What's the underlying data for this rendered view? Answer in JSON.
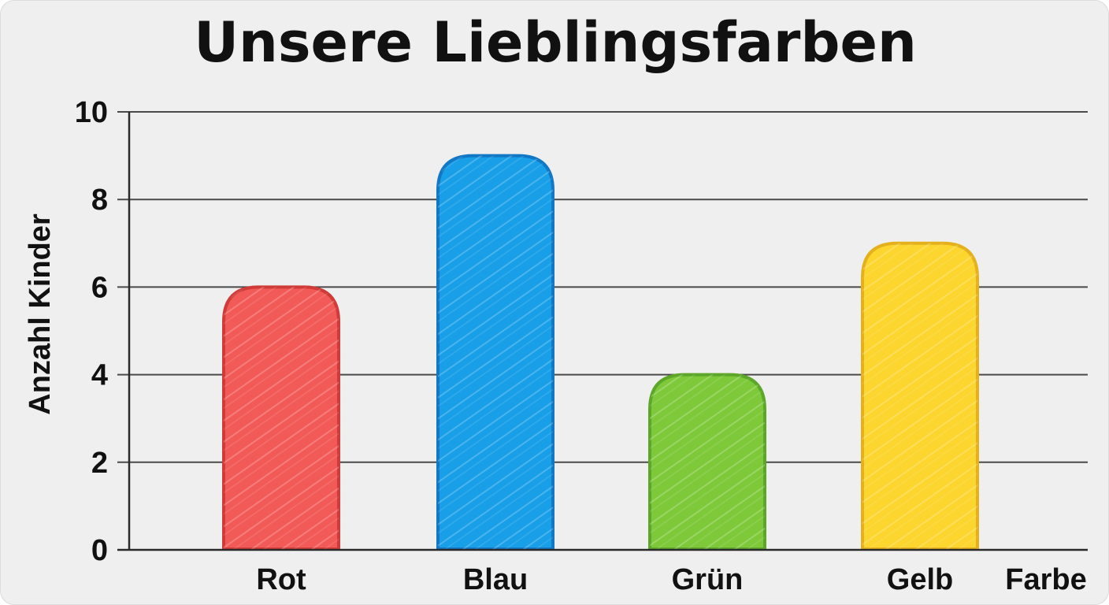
{
  "chart_data": {
    "type": "bar",
    "title": "Unsere Lieblingsfarben",
    "xlabel": "Farbe",
    "ylabel": "Anzahl Kinder",
    "categories": [
      "Rot",
      "Blau",
      "Grün",
      "Gelb"
    ],
    "values": [
      6,
      9,
      4,
      7
    ],
    "colors": [
      "#f25a57",
      "#189fe8",
      "#7ec93a",
      "#fcd52e"
    ],
    "edge_colors": [
      "#cf3b38",
      "#1277c4",
      "#5ea62a",
      "#e4b01c"
    ],
    "ylim": [
      0,
      10
    ],
    "yticks": [
      0,
      2,
      4,
      6,
      8,
      10
    ],
    "grid": true,
    "legend": "none"
  }
}
